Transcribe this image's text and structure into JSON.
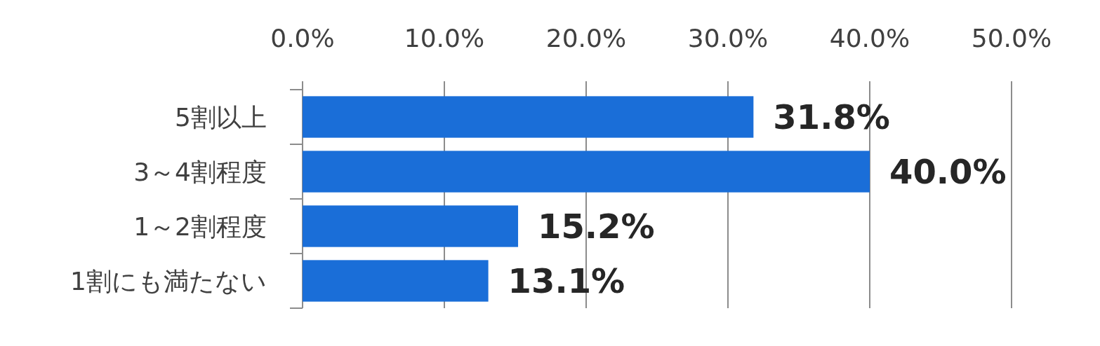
{
  "chart_data": {
    "type": "bar",
    "orientation": "horizontal",
    "categories": [
      "5割以上",
      "3～4割程度",
      "1～2割程度",
      "1割にも満たない"
    ],
    "values": [
      31.8,
      40.0,
      15.2,
      13.1
    ],
    "value_labels": [
      "31.8%",
      "40.0%",
      "15.2%",
      "13.1%"
    ],
    "color": "#1a6ed8",
    "xlim": [
      0,
      50
    ],
    "xticks": [
      {
        "value": 0,
        "label": "0.0%"
      },
      {
        "value": 10,
        "label": "10.0%"
      },
      {
        "value": 20,
        "label": "20.0%"
      },
      {
        "value": 30,
        "label": "30.0%"
      },
      {
        "value": 40,
        "label": "40.0%"
      },
      {
        "value": 50,
        "label": "50.0%"
      }
    ],
    "grid": "x"
  }
}
